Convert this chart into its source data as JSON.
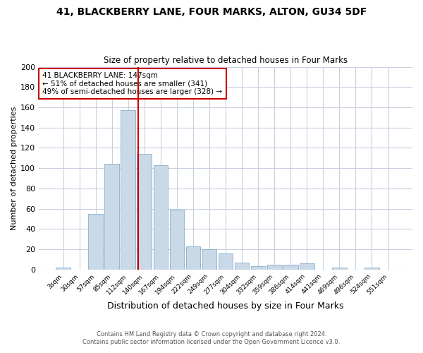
{
  "title1": "41, BLACKBERRY LANE, FOUR MARKS, ALTON, GU34 5DF",
  "title2": "Size of property relative to detached houses in Four Marks",
  "xlabel": "Distribution of detached houses by size in Four Marks",
  "ylabel": "Number of detached properties",
  "bin_labels": [
    "3sqm",
    "30sqm",
    "57sqm",
    "85sqm",
    "112sqm",
    "140sqm",
    "167sqm",
    "194sqm",
    "222sqm",
    "249sqm",
    "277sqm",
    "304sqm",
    "332sqm",
    "359sqm",
    "386sqm",
    "414sqm",
    "441sqm",
    "469sqm",
    "496sqm",
    "524sqm",
    "551sqm"
  ],
  "bar_heights": [
    2,
    0,
    55,
    104,
    157,
    114,
    103,
    59,
    23,
    20,
    16,
    7,
    3,
    5,
    5,
    6,
    0,
    2,
    0,
    2,
    0
  ],
  "bar_color": "#c9d9e8",
  "bar_edge_color": "#8aafc8",
  "vline_x": 4.62,
  "vline_color": "#cc0000",
  "annotation_text": "41 BLACKBERRY LANE: 147sqm\n← 51% of detached houses are smaller (341)\n49% of semi-detached houses are larger (328) →",
  "annotation_box_color": "#ffffff",
  "annotation_box_edgecolor": "#cc0000",
  "footnote1": "Contains HM Land Registry data © Crown copyright and database right 2024.",
  "footnote2": "Contains public sector information licensed under the Open Government Licence v3.0.",
  "ylim": [
    0,
    200
  ],
  "yticks": [
    0,
    20,
    40,
    60,
    80,
    100,
    120,
    140,
    160,
    180,
    200
  ],
  "bg_color": "#ffffff",
  "plot_bg_color": "#ffffff",
  "grid_color": "#c8d0e0"
}
